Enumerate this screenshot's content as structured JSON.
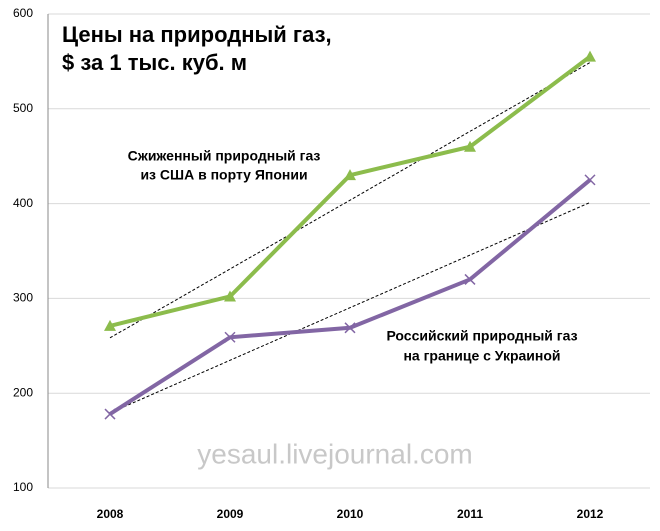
{
  "chart_data": {
    "type": "line",
    "title": [
      "Цены на природный газ,",
      "$ за 1 тыс. куб. м"
    ],
    "categories": [
      "2008",
      "2009",
      "2010",
      "2011",
      "2012"
    ],
    "series": [
      {
        "color": "#8cbc4c",
        "marker": "triangle",
        "values": [
          271,
          302,
          430,
          460,
          555
        ]
      },
      {
        "color": "#8266a4",
        "marker": "x",
        "values": [
          178,
          259,
          269,
          320,
          425
        ]
      }
    ],
    "annotations": [
      [
        "Сжиженный природный газ",
        "из США в порту Японии"
      ],
      [
        "Российский природный газ",
        "на границе с Украиной"
      ]
    ],
    "watermark": "yesaul.livejournal.com",
    "trendline": true,
    "ylim": [
      100,
      600
    ],
    "yticks": [
      100,
      200,
      300,
      400,
      500,
      600
    ],
    "grid": true
  }
}
